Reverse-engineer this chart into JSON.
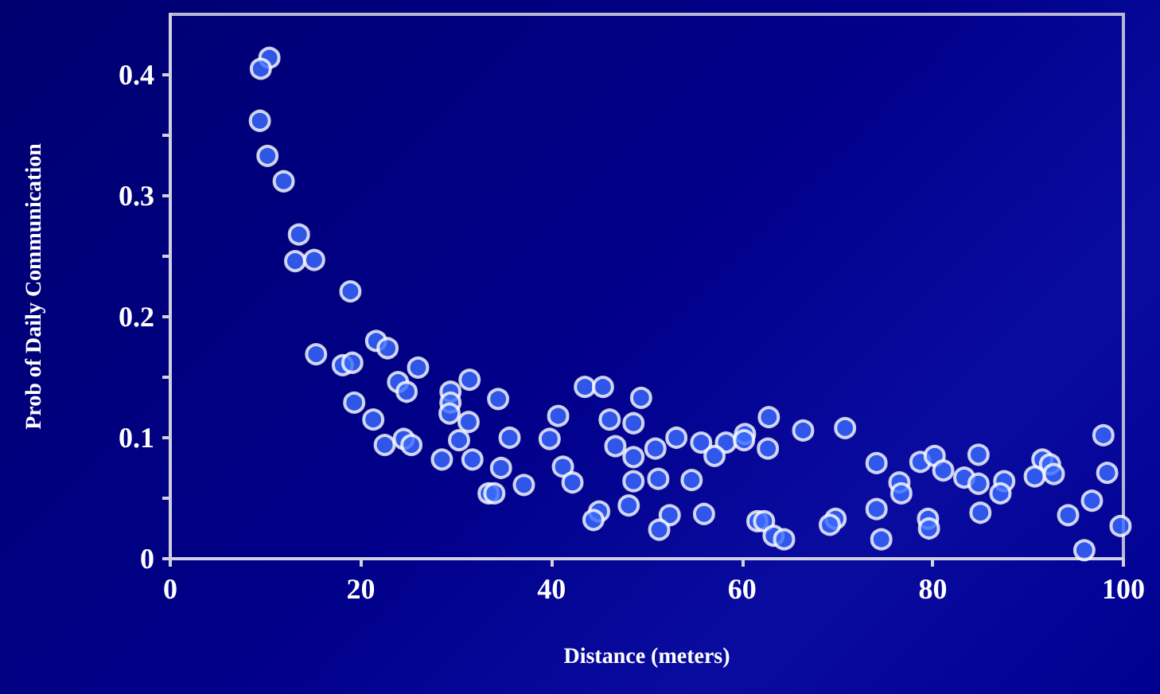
{
  "chart_data": {
    "type": "scatter",
    "xlabel": "Distance (meters)",
    "ylabel": "Prob of Daily Communication",
    "x": [
      10.4,
      9.5,
      9.4,
      10.2,
      11.9,
      13.5,
      13.1,
      15.1,
      18.9,
      15.3,
      18.1,
      19.1,
      21.6,
      22.8,
      26.0,
      23.9,
      24.8,
      19.3,
      21.3,
      22.5,
      24.5,
      25.3,
      29.4,
      29.4,
      29.3,
      31.4,
      31.3,
      30.3,
      28.5,
      31.7,
      34.4,
      34.7,
      33.4,
      34.0,
      35.6,
      43.5,
      45.4,
      49.4,
      40.7,
      46.1,
      48.6,
      39.8,
      53.1,
      55.7,
      58.3,
      60.3,
      60.2,
      62.8,
      66.4,
      46.7,
      48.6,
      50.9,
      57.1,
      62.7,
      41.2,
      42.2,
      37.1,
      48.6,
      51.2,
      54.7,
      45.0,
      44.4,
      48.1,
      52.4,
      51.3,
      56.0,
      61.6,
      62.3,
      63.3,
      64.4,
      70.8,
      74.1,
      76.5,
      76.7,
      78.7,
      80.2,
      81.1,
      83.3,
      84.8,
      84.8,
      87.5,
      87.1,
      91.5,
      92.3,
      90.7,
      92.7,
      97.9,
      98.3,
      96.7,
      94.2,
      99.7,
      95.9,
      69.8,
      69.2,
      74.1,
      74.6,
      79.5,
      79.6,
      85.0
    ],
    "values": [
      0.414,
      0.405,
      0.362,
      0.333,
      0.312,
      0.268,
      0.246,
      0.247,
      0.221,
      0.169,
      0.16,
      0.162,
      0.18,
      0.174,
      0.158,
      0.146,
      0.138,
      0.129,
      0.115,
      0.094,
      0.099,
      0.094,
      0.138,
      0.129,
      0.12,
      0.148,
      0.113,
      0.098,
      0.082,
      0.082,
      0.132,
      0.075,
      0.054,
      0.054,
      0.1,
      0.142,
      0.142,
      0.133,
      0.118,
      0.115,
      0.112,
      0.099,
      0.1,
      0.096,
      0.096,
      0.103,
      0.098,
      0.117,
      0.106,
      0.093,
      0.084,
      0.091,
      0.085,
      0.091,
      0.076,
      0.063,
      0.061,
      0.064,
      0.066,
      0.065,
      0.039,
      0.032,
      0.044,
      0.036,
      0.024,
      0.037,
      0.031,
      0.031,
      0.019,
      0.016,
      0.108,
      0.079,
      0.063,
      0.054,
      0.08,
      0.085,
      0.073,
      0.067,
      0.086,
      0.062,
      0.064,
      0.054,
      0.082,
      0.078,
      0.068,
      0.07,
      0.102,
      0.071,
      0.048,
      0.036,
      0.027,
      0.007,
      0.033,
      0.028,
      0.041,
      0.016,
      0.033,
      0.025,
      0.038
    ],
    "color": "#3b6cff",
    "marker": "circle",
    "grid": false,
    "xlim": [
      0,
      100
    ],
    "xticks": [
      0,
      20,
      40,
      60,
      80,
      100
    ],
    "ylim": [
      0,
      0.45
    ],
    "yticks": [
      0,
      {
        "value": 0.05,
        "label": null
      },
      0.1,
      {
        "value": 0.15,
        "label": null
      },
      0.2,
      {
        "value": 0.25,
        "label": null
      },
      0.3,
      {
        "value": 0.35,
        "label": null
      },
      0.4
    ]
  }
}
